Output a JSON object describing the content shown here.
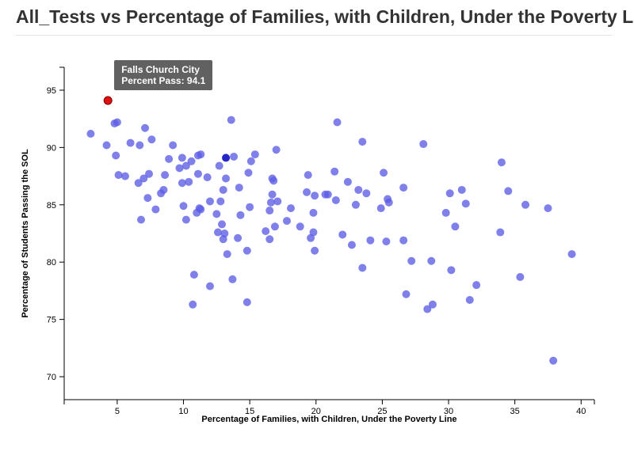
{
  "header": {
    "title": "All_Tests vs Percentage of Families, with Children, Under the Poverty Line"
  },
  "tooltip": {
    "name": "Falls Church City",
    "value_text": "Percent Pass: 94.1"
  },
  "colors": {
    "point": "#5c5ce6",
    "point_dark": "#2626c8",
    "highlight": "#e01010"
  },
  "chart_data": {
    "type": "scatter",
    "xlabel": "Percentage of Families, with Children, Under the Poverty Line",
    "ylabel": "Percentage of Students Passing the SOL",
    "xlim": [
      1,
      41
    ],
    "ylim": [
      68,
      97
    ],
    "xticks": [
      5,
      10,
      15,
      20,
      25,
      30,
      35,
      40
    ],
    "yticks": [
      70,
      75,
      80,
      85,
      90,
      95
    ],
    "highlight": {
      "x": 4.3,
      "y": 94.1
    },
    "dark_points": [
      [
        13.2,
        89.1
      ]
    ],
    "points": [
      [
        3.0,
        91.2
      ],
      [
        4.2,
        90.2
      ],
      [
        4.8,
        92.1
      ],
      [
        5.0,
        92.2
      ],
      [
        4.9,
        89.3
      ],
      [
        5.1,
        87.6
      ],
      [
        5.6,
        87.5
      ],
      [
        6.0,
        90.4
      ],
      [
        6.6,
        86.9
      ],
      [
        6.7,
        90.2
      ],
      [
        6.8,
        83.7
      ],
      [
        7.1,
        91.7
      ],
      [
        7.0,
        87.3
      ],
      [
        7.3,
        85.6
      ],
      [
        7.4,
        87.7
      ],
      [
        7.6,
        90.7
      ],
      [
        7.9,
        84.6
      ],
      [
        8.3,
        86.0
      ],
      [
        8.5,
        86.3
      ],
      [
        8.6,
        87.6
      ],
      [
        8.9,
        89.0
      ],
      [
        9.2,
        90.2
      ],
      [
        9.7,
        88.2
      ],
      [
        9.9,
        89.1
      ],
      [
        9.9,
        86.9
      ],
      [
        10.0,
        84.9
      ],
      [
        10.2,
        88.4
      ],
      [
        10.2,
        83.7
      ],
      [
        10.4,
        87.0
      ],
      [
        10.6,
        88.8
      ],
      [
        10.8,
        78.9
      ],
      [
        10.7,
        76.3
      ],
      [
        11.0,
        84.3
      ],
      [
        11.1,
        89.3
      ],
      [
        11.2,
        84.7
      ],
      [
        11.3,
        89.4
      ],
      [
        11.1,
        87.7
      ],
      [
        11.3,
        84.6
      ],
      [
        11.8,
        87.4
      ],
      [
        12.0,
        85.3
      ],
      [
        12.0,
        77.9
      ],
      [
        12.5,
        84.2
      ],
      [
        12.6,
        82.6
      ],
      [
        12.7,
        88.4
      ],
      [
        12.8,
        85.3
      ],
      [
        12.9,
        83.3
      ],
      [
        13.0,
        82.0
      ],
      [
        13.0,
        86.3
      ],
      [
        13.1,
        82.5
      ],
      [
        13.2,
        87.3
      ],
      [
        13.3,
        80.7
      ],
      [
        13.6,
        92.4
      ],
      [
        13.7,
        78.5
      ],
      [
        13.8,
        89.2
      ],
      [
        14.1,
        82.1
      ],
      [
        14.2,
        86.5
      ],
      [
        14.3,
        84.1
      ],
      [
        14.8,
        81.0
      ],
      [
        14.8,
        76.5
      ],
      [
        14.9,
        87.8
      ],
      [
        15.0,
        84.8
      ],
      [
        15.1,
        88.8
      ],
      [
        15.4,
        89.4
      ],
      [
        16.2,
        82.7
      ],
      [
        16.5,
        84.5
      ],
      [
        16.5,
        82.0
      ],
      [
        16.6,
        85.2
      ],
      [
        16.7,
        87.3
      ],
      [
        16.7,
        85.9
      ],
      [
        16.8,
        87.1
      ],
      [
        16.9,
        83.1
      ],
      [
        17.0,
        89.8
      ],
      [
        17.1,
        85.3
      ],
      [
        17.8,
        83.6
      ],
      [
        18.1,
        84.7
      ],
      [
        18.8,
        83.1
      ],
      [
        19.3,
        86.1
      ],
      [
        19.4,
        87.6
      ],
      [
        19.6,
        82.1
      ],
      [
        19.8,
        84.3
      ],
      [
        19.8,
        82.6
      ],
      [
        19.9,
        81.0
      ],
      [
        19.9,
        85.8
      ],
      [
        20.7,
        85.9
      ],
      [
        20.9,
        85.9
      ],
      [
        21.4,
        87.9
      ],
      [
        21.6,
        92.2
      ],
      [
        21.5,
        85.4
      ],
      [
        22.0,
        82.4
      ],
      [
        22.4,
        87.0
      ],
      [
        22.7,
        81.5
      ],
      [
        23.0,
        85.0
      ],
      [
        23.2,
        86.3
      ],
      [
        23.5,
        90.5
      ],
      [
        23.5,
        79.5
      ],
      [
        23.8,
        86.0
      ],
      [
        24.1,
        81.9
      ],
      [
        24.9,
        84.7
      ],
      [
        25.1,
        87.8
      ],
      [
        25.4,
        85.5
      ],
      [
        25.3,
        81.8
      ],
      [
        25.5,
        85.2
      ],
      [
        26.6,
        86.5
      ],
      [
        26.6,
        81.9
      ],
      [
        26.8,
        77.2
      ],
      [
        27.2,
        80.1
      ],
      [
        28.1,
        90.3
      ],
      [
        28.4,
        75.9
      ],
      [
        28.7,
        80.1
      ],
      [
        28.8,
        76.3
      ],
      [
        29.8,
        84.3
      ],
      [
        30.1,
        86.0
      ],
      [
        30.2,
        79.3
      ],
      [
        30.5,
        83.1
      ],
      [
        31.0,
        86.3
      ],
      [
        31.3,
        85.1
      ],
      [
        31.6,
        76.7
      ],
      [
        32.1,
        78.0
      ],
      [
        33.9,
        82.6
      ],
      [
        34.0,
        88.7
      ],
      [
        34.5,
        86.2
      ],
      [
        35.4,
        78.7
      ],
      [
        35.8,
        85.0
      ],
      [
        37.5,
        84.7
      ],
      [
        37.9,
        71.4
      ],
      [
        39.3,
        80.7
      ]
    ]
  }
}
